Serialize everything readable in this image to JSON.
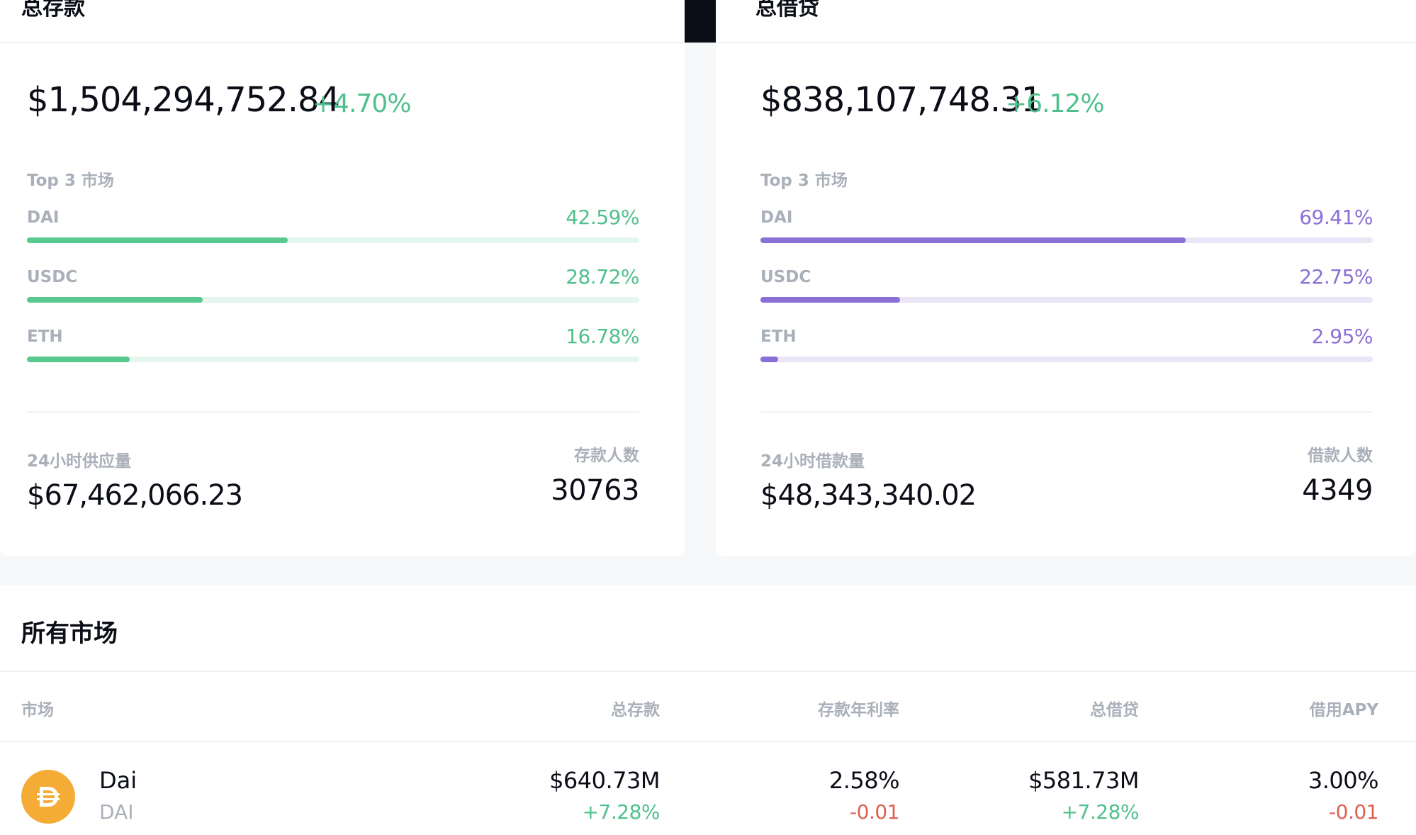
{
  "supply_card": {
    "title": "总存款",
    "total": "$1,504,294,752.84",
    "change": "+4.70%",
    "top3_label": "Top 3 市场",
    "markets": [
      {
        "name": "DAI",
        "percent": "42.59%",
        "fill": 0.4259
      },
      {
        "name": "USDC",
        "percent": "28.72%",
        "fill": 0.2872
      },
      {
        "name": "ETH",
        "percent": "16.78%",
        "fill": 0.1678
      }
    ],
    "volume_label": "24小时供应量",
    "volume_value": "$67,462,066.23",
    "count_label": "存款人数",
    "count_value": "30763"
  },
  "borrow_card": {
    "title": "总借贷",
    "total": "$838,107,748.31",
    "change": "+6.12%",
    "top3_label": "Top 3 市场",
    "markets": [
      {
        "name": "DAI",
        "percent": "69.41%",
        "fill": 0.6941
      },
      {
        "name": "USDC",
        "percent": "22.75%",
        "fill": 0.2275
      },
      {
        "name": "ETH",
        "percent": "2.95%",
        "fill": 0.0295
      }
    ],
    "volume_label": "24小时借款量",
    "volume_value": "$48,343,340.02",
    "count_label": "借款人数",
    "count_value": "4349"
  },
  "colors": {
    "supply_accent": "#58c98f",
    "borrow_accent": "#8a6fd6",
    "negative": "#e0604f",
    "dai_icon": "#f5ac37"
  },
  "all_markets": {
    "title": "所有市场",
    "headers": {
      "market": "市场",
      "total_supply": "总存款",
      "supply_apy": "存款年利率",
      "total_borrow": "总借贷",
      "borrow_apy": "借用APY"
    },
    "rows": [
      {
        "icon": "dai-icon",
        "name": "Dai",
        "symbol": "DAI",
        "total_supply": "$640.73M",
        "total_supply_change": "+7.28%",
        "supply_apy": "2.58%",
        "supply_apy_change": "-0.01",
        "total_borrow": "$581.73M",
        "total_borrow_change": "+7.28%",
        "borrow_apy": "3.00%",
        "borrow_apy_change": "-0.01"
      }
    ]
  }
}
